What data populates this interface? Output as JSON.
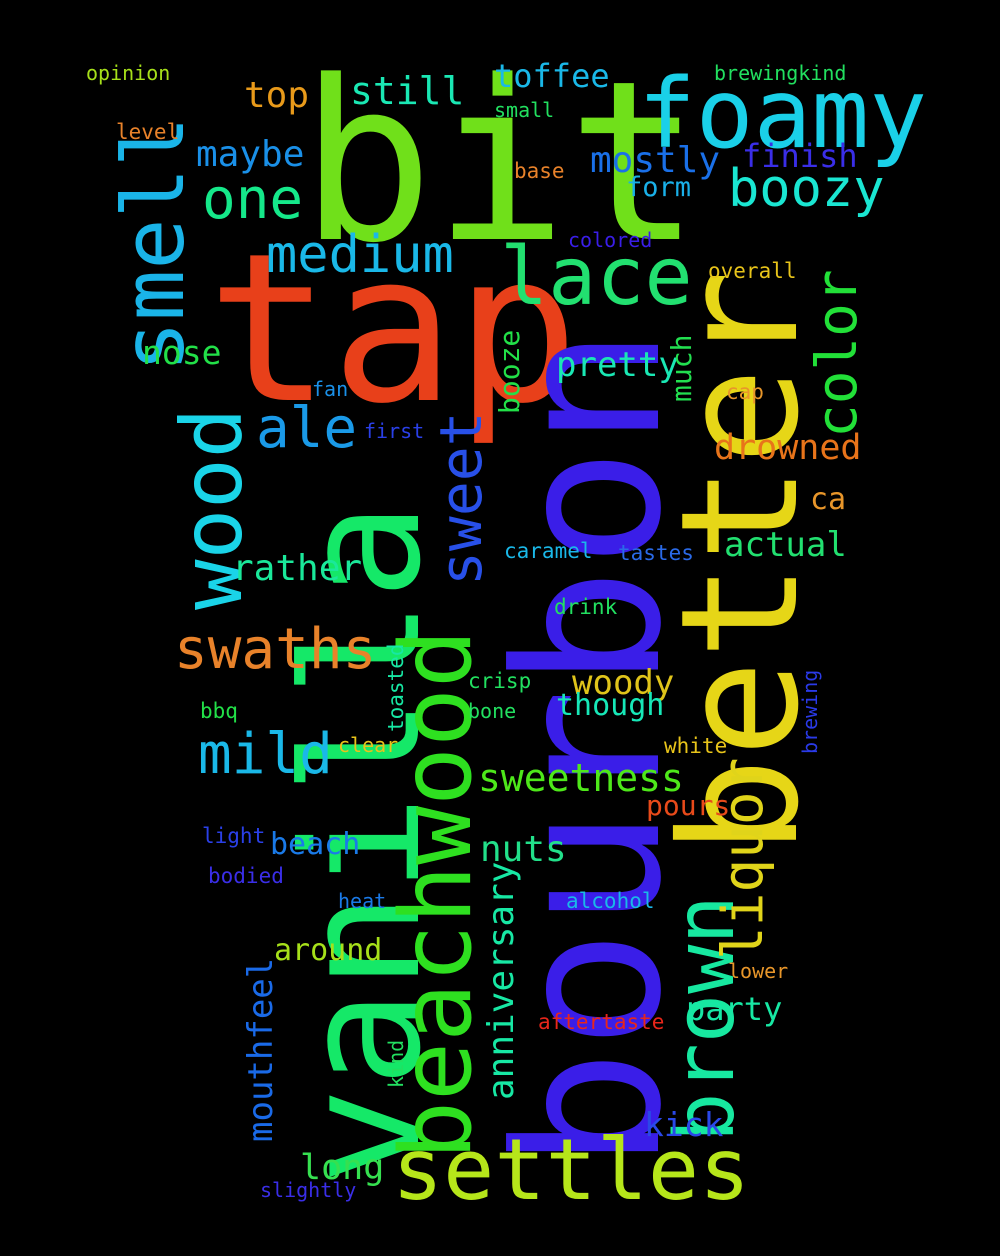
{
  "words": [
    {
      "text": "bit",
      "color": "#70e01a"
    },
    {
      "text": "tap",
      "color": "#e8401a"
    },
    {
      "text": "vanilla",
      "color": "#15e868"
    },
    {
      "text": "bourbon",
      "color": "#3a1ee8"
    },
    {
      "text": "better",
      "color": "#e6d617"
    },
    {
      "text": "beachwood",
      "color": "#2ee020"
    },
    {
      "text": "settles",
      "color": "#b6e61a"
    },
    {
      "text": "foamy",
      "color": "#1ad0e8"
    },
    {
      "text": "brown",
      "color": "#17e8a0"
    },
    {
      "text": "smell",
      "color": "#1ab4e8"
    },
    {
      "text": "wood",
      "color": "#1ad4e8"
    },
    {
      "text": "lace",
      "color": "#22e070"
    },
    {
      "text": "boozy",
      "color": "#1ae6d2"
    },
    {
      "text": "color",
      "color": "#22e038"
    },
    {
      "text": "sweet",
      "color": "#2850e8"
    },
    {
      "text": "liquor",
      "color": "#e0d41a"
    },
    {
      "text": "one",
      "color": "#15e88a"
    },
    {
      "text": "medium",
      "color": "#1ab8e8"
    },
    {
      "text": "ale",
      "color": "#1a9ae8"
    },
    {
      "text": "swaths",
      "color": "#e8822a"
    },
    {
      "text": "mild",
      "color": "#1ab8e8"
    },
    {
      "text": "anniversary",
      "color": "#17e8a4"
    },
    {
      "text": "sweetness",
      "color": "#4ee81a"
    },
    {
      "text": "mouthfeel",
      "color": "#1a6ae8"
    },
    {
      "text": "drowned",
      "color": "#e8741a"
    },
    {
      "text": "still",
      "color": "#1ae8b4"
    },
    {
      "text": "toffee",
      "color": "#1ab8e8"
    },
    {
      "text": "mostly",
      "color": "#1a70e8"
    },
    {
      "text": "finish",
      "color": "#3a2ee8"
    },
    {
      "text": "maybe",
      "color": "#1a90e8"
    },
    {
      "text": "top",
      "color": "#e89a1a"
    },
    {
      "text": "rather",
      "color": "#1ae89a"
    },
    {
      "text": "pretty",
      "color": "#1ae8b4"
    },
    {
      "text": "actual",
      "color": "#22e070"
    },
    {
      "text": "woody",
      "color": "#e0c41a"
    },
    {
      "text": "nuts",
      "color": "#22e08a"
    },
    {
      "text": "long",
      "color": "#36e050"
    },
    {
      "text": "nose",
      "color": "#22e048"
    },
    {
      "text": "beach",
      "color": "#1a7ae8"
    },
    {
      "text": "around",
      "color": "#a6e01a"
    },
    {
      "text": "party",
      "color": "#17e8a4"
    },
    {
      "text": "kick",
      "color": "#2a48e8"
    },
    {
      "text": "though",
      "color": "#17e8b8"
    },
    {
      "text": "booze",
      "color": "#22e048"
    },
    {
      "text": "much",
      "color": "#22e050"
    },
    {
      "text": "form",
      "color": "#1ab0e8"
    },
    {
      "text": "pours",
      "color": "#e84a1a"
    },
    {
      "text": "ca",
      "color": "#e8962a"
    },
    {
      "text": "opinion",
      "color": "#a6e01a"
    },
    {
      "text": "level",
      "color": "#e8822a"
    },
    {
      "text": "small",
      "color": "#22e060"
    },
    {
      "text": "base",
      "color": "#e8822a"
    },
    {
      "text": "brewingkind",
      "color": "#22e060"
    },
    {
      "text": "colored",
      "color": "#3a1ee8"
    },
    {
      "text": "overall",
      "color": "#e8c41a"
    },
    {
      "text": "fan",
      "color": "#1a90e8"
    },
    {
      "text": "first",
      "color": "#2a40e8"
    },
    {
      "text": "cap",
      "color": "#e8962a"
    },
    {
      "text": "caramel",
      "color": "#1ab8e8"
    },
    {
      "text": "tastes",
      "color": "#2a6ae8"
    },
    {
      "text": "drink",
      "color": "#22e060"
    },
    {
      "text": "crisp",
      "color": "#22e060"
    },
    {
      "text": "bone",
      "color": "#22e060"
    },
    {
      "text": "bbq",
      "color": "#22e048"
    },
    {
      "text": "clear",
      "color": "#e8c41a"
    },
    {
      "text": "white",
      "color": "#e8c41a"
    },
    {
      "text": "toasted",
      "color": "#17e8a4"
    },
    {
      "text": "brewing",
      "color": "#2a3ae8"
    },
    {
      "text": "light",
      "color": "#2a40e8"
    },
    {
      "text": "bodied",
      "color": "#3a2ee8"
    },
    {
      "text": "heat",
      "color": "#1a7ae8"
    },
    {
      "text": "alcohol",
      "color": "#1ab8e8"
    },
    {
      "text": "lower",
      "color": "#e8962a"
    },
    {
      "text": "aftertaste",
      "color": "#e8261a"
    },
    {
      "text": "kind",
      "color": "#22e060"
    },
    {
      "text": "slightly",
      "color": "#3a2ee8"
    }
  ]
}
